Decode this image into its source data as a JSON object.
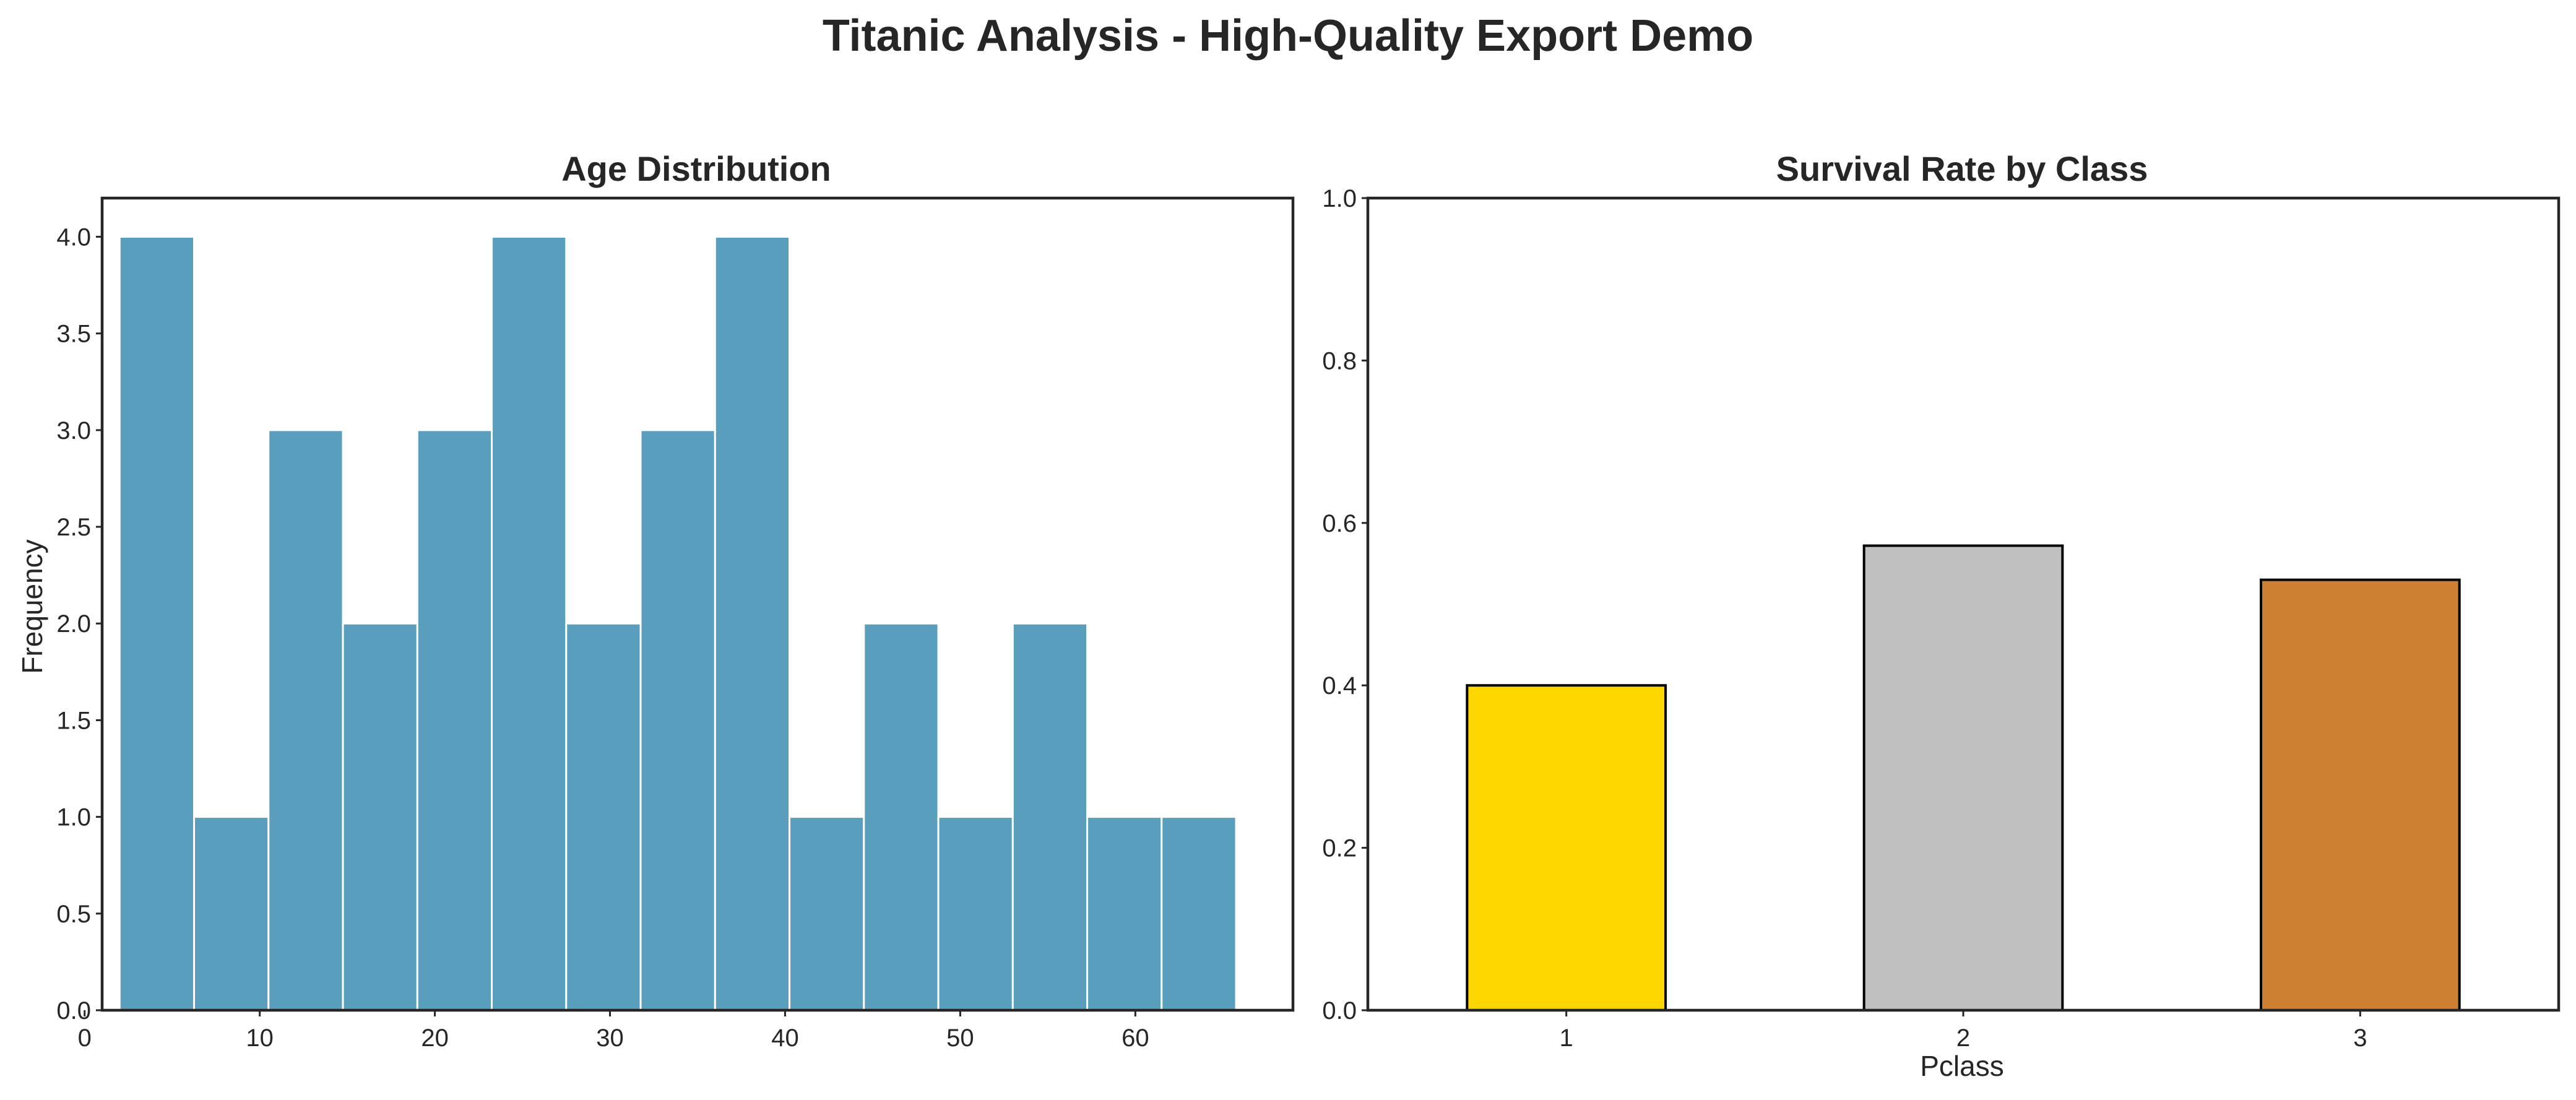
{
  "figure": {
    "suptitle": "Titanic Analysis - High-Quality Export Demo"
  },
  "chart_data": [
    {
      "type": "bar",
      "subtype": "histogram",
      "title": "Age Distribution",
      "xlabel": "",
      "ylabel": "Frequency",
      "xlim": [
        1.0,
        69.0
      ],
      "ylim": [
        0,
        4.2
      ],
      "xticks": [
        0,
        10,
        20,
        30,
        40,
        50,
        60
      ],
      "yticks": [
        "0.0",
        "0.5",
        "1.0",
        "1.5",
        "2.0",
        "2.5",
        "3.0",
        "3.5",
        "4.0"
      ],
      "bin_edges": [
        2.0,
        6.25,
        10.5,
        14.75,
        19.0,
        23.25,
        27.5,
        31.75,
        36.0,
        40.25,
        44.5,
        48.75,
        53.0,
        57.25,
        61.5,
        65.75
      ],
      "values": [
        4,
        1,
        3,
        2,
        3,
        4,
        2,
        3,
        4,
        1,
        2,
        1,
        2,
        1,
        1
      ],
      "color": "#5a9ebe",
      "edgecolor": "#ffffff",
      "grid": false
    },
    {
      "type": "bar",
      "title": "Survival Rate by Class",
      "xlabel": "Pclass",
      "ylabel": "",
      "categories": [
        "1",
        "2",
        "3"
      ],
      "values": [
        0.4,
        0.572,
        0.53
      ],
      "colors": [
        "#ffd700",
        "#c0c0c0",
        "#cd7f32"
      ],
      "edgecolor": "#000000",
      "ylim": [
        0,
        1.0
      ],
      "yticks": [
        "0.0",
        "0.2",
        "0.4",
        "0.6",
        "0.8",
        "1.0"
      ],
      "grid": false
    }
  ]
}
